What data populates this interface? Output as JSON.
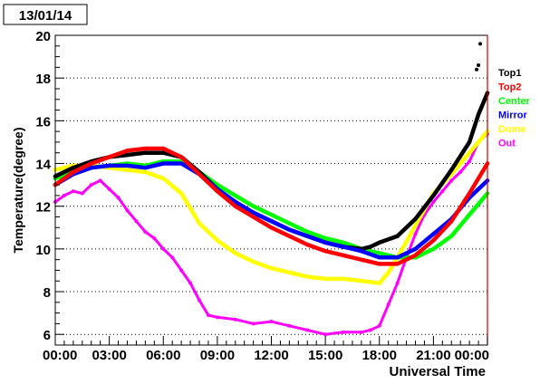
{
  "chart_data": {
    "type": "line",
    "title": "13/01/14",
    "xlabel": "Universal Time",
    "ylabel": "Temperature(degree)",
    "x_unit": "hours UT",
    "xlim": [
      0,
      24
    ],
    "ylim": [
      5.5,
      20
    ],
    "xticks": [
      "00:00",
      "03:00",
      "06:00",
      "09:00",
      "12:00",
      "15:00",
      "18:00",
      "21:00",
      "00:00"
    ],
    "yticks": [
      6,
      8,
      10,
      12,
      14,
      16,
      18,
      20
    ],
    "grid": "horizontal dotted",
    "legend_position": "right",
    "series": [
      {
        "name": "Top1",
        "color": "#000000",
        "x": [
          0,
          1,
          2,
          3,
          4,
          5,
          6,
          7,
          8,
          9,
          10,
          11,
          12,
          13,
          14,
          15,
          16,
          17,
          17.5,
          18,
          19,
          20,
          21,
          22,
          23,
          23.5,
          24
        ],
        "y": [
          13.4,
          13.8,
          14.1,
          14.3,
          14.4,
          14.5,
          14.5,
          14.3,
          13.6,
          12.8,
          12.2,
          11.7,
          11.3,
          10.9,
          10.6,
          10.3,
          10.1,
          10.0,
          10.1,
          10.3,
          10.6,
          11.4,
          12.5,
          13.7,
          15.0,
          16.3,
          17.3
        ]
      },
      {
        "name": "Top2",
        "color": "#ff0000",
        "x": [
          0,
          1,
          2,
          3,
          4,
          5,
          6,
          7,
          8,
          9,
          10,
          11,
          12,
          13,
          14,
          15,
          16,
          17,
          18,
          19,
          20,
          21,
          22,
          23,
          24
        ],
        "y": [
          13.0,
          13.6,
          14.0,
          14.3,
          14.6,
          14.7,
          14.7,
          14.3,
          13.5,
          12.7,
          12.0,
          11.5,
          11.0,
          10.6,
          10.2,
          9.9,
          9.7,
          9.5,
          9.3,
          9.3,
          9.7,
          10.4,
          11.3,
          12.6,
          14.0
        ]
      },
      {
        "name": "Center",
        "color": "#00ff00",
        "x": [
          0,
          1,
          2,
          3,
          4,
          5,
          6,
          7,
          8,
          9,
          10,
          11,
          12,
          13,
          14,
          15,
          16,
          17,
          18,
          19,
          20,
          21,
          22,
          23,
          24
        ],
        "y": [
          13.3,
          13.6,
          13.8,
          13.9,
          14.0,
          13.9,
          14.1,
          14.1,
          13.6,
          13.0,
          12.5,
          12.0,
          11.6,
          11.2,
          10.8,
          10.5,
          10.3,
          10.0,
          9.8,
          9.6,
          9.6,
          10.0,
          10.6,
          11.6,
          12.6
        ]
      },
      {
        "name": "Mirror",
        "color": "#0000ff",
        "x": [
          0,
          1,
          2,
          3,
          4,
          5,
          6,
          7,
          8,
          9,
          10,
          11,
          12,
          13,
          14,
          15,
          16,
          17,
          18,
          19,
          20,
          21,
          22,
          23,
          24
        ],
        "y": [
          13.0,
          13.5,
          13.8,
          13.9,
          13.9,
          13.8,
          14.0,
          14.0,
          13.5,
          12.8,
          12.2,
          11.7,
          11.3,
          10.9,
          10.6,
          10.3,
          10.1,
          9.9,
          9.6,
          9.6,
          10.0,
          10.7,
          11.4,
          12.4,
          13.2
        ]
      },
      {
        "name": "Dome",
        "color": "#ffff00",
        "x": [
          0,
          1,
          2,
          3,
          4,
          5,
          6,
          7,
          7.5,
          8,
          9,
          10,
          11,
          12,
          13,
          14,
          15,
          16,
          17,
          18,
          18.5,
          19,
          20,
          21,
          22,
          23,
          24
        ],
        "y": [
          13.7,
          13.9,
          13.9,
          13.8,
          13.7,
          13.6,
          13.3,
          12.6,
          11.9,
          11.2,
          10.4,
          9.8,
          9.4,
          9.1,
          8.9,
          8.7,
          8.6,
          8.6,
          8.5,
          8.4,
          8.9,
          9.6,
          11.1,
          12.6,
          13.5,
          14.5,
          15.5
        ]
      },
      {
        "name": "Out",
        "color": "#ff00ff",
        "x": [
          0,
          0.5,
          1,
          1.5,
          2,
          2.5,
          3,
          3.5,
          4,
          4.5,
          5,
          5.5,
          6,
          6.5,
          7,
          7.5,
          8,
          8.5,
          9,
          10,
          11,
          12,
          13,
          14,
          15,
          16,
          17,
          17.5,
          18,
          18.5,
          19,
          19.5,
          20,
          20.5,
          21,
          21.5,
          22,
          22.5,
          23,
          23.5,
          24
        ],
        "y": [
          12.2,
          12.5,
          12.7,
          12.6,
          13.0,
          13.2,
          12.8,
          12.4,
          11.8,
          11.3,
          10.8,
          10.5,
          10.0,
          9.6,
          9.0,
          8.4,
          7.6,
          6.9,
          6.8,
          6.7,
          6.5,
          6.6,
          6.4,
          6.2,
          6.0,
          6.1,
          6.1,
          6.2,
          6.4,
          7.4,
          8.4,
          9.6,
          10.7,
          11.6,
          12.2,
          12.7,
          13.2,
          13.6,
          14.1,
          15.0,
          15.4
        ]
      }
    ],
    "extra_points": [
      {
        "series": "Top1",
        "x": 23.6,
        "y": 19.6
      },
      {
        "series": "Top1",
        "x": 23.4,
        "y": 18.4
      },
      {
        "series": "Top1",
        "x": 23.5,
        "y": 18.6
      }
    ]
  }
}
